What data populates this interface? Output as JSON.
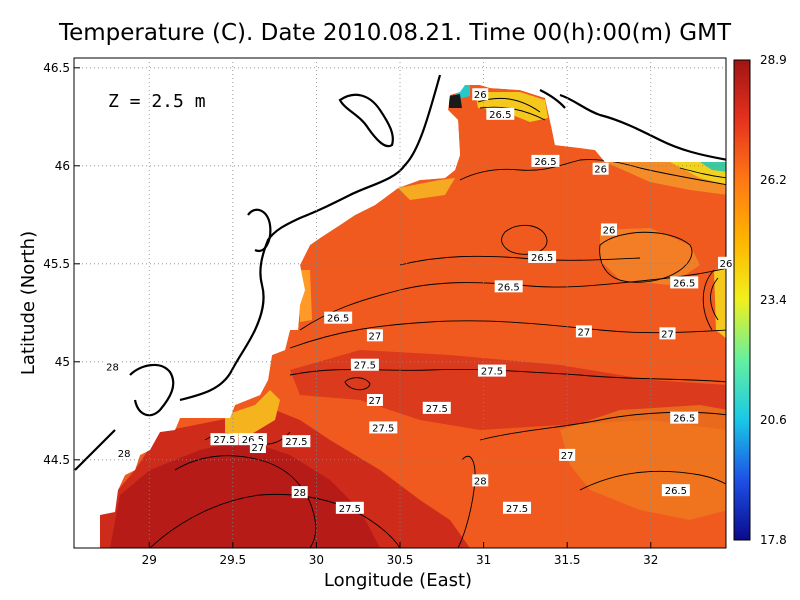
{
  "chart_data": {
    "type": "heatmap",
    "title": "Temperature (C). Date 2010.08.21. Time 00(h):00(m) GMT",
    "xlabel": "Longitude (East)",
    "ylabel": "Latitude (North)",
    "annotation": "Z = 2.5 m",
    "xlim": [
      28.55,
      32.45
    ],
    "ylim": [
      44.05,
      46.55
    ],
    "x_ticks": [
      29,
      29.5,
      30,
      30.5,
      31,
      31.5,
      32
    ],
    "x_tick_labels": [
      "29",
      "29.5",
      "30",
      "30.5",
      "31",
      "31.5",
      "32"
    ],
    "y_ticks": [
      44.5,
      45,
      45.5,
      46,
      46.5
    ],
    "y_tick_labels": [
      "44.5",
      "45",
      "45.5",
      "46",
      "46.5"
    ],
    "grid": true,
    "colorbar": {
      "range": [
        17.8,
        28.9
      ],
      "tick_labels": [
        "28.9",
        "26.2",
        "23.4",
        "20.6",
        "17.8"
      ],
      "colors": [
        "#0a0a8c",
        "#1e50e6",
        "#19c8e6",
        "#64f0a0",
        "#f0f01e",
        "#ffb400",
        "#ff7814",
        "#e6321e",
        "#a01414"
      ]
    },
    "contour_labels": [
      {
        "lon": 28.78,
        "lat": 44.97,
        "text": "28"
      },
      {
        "lon": 28.85,
        "lat": 44.53,
        "text": "28"
      },
      {
        "lon": 29.45,
        "lat": 44.6,
        "text": "27.5"
      },
      {
        "lon": 29.62,
        "lat": 44.6,
        "text": "26.5"
      },
      {
        "lon": 29.65,
        "lat": 44.56,
        "text": "27"
      },
      {
        "lon": 29.88,
        "lat": 44.59,
        "text": "27.5"
      },
      {
        "lon": 29.9,
        "lat": 44.33,
        "text": "28"
      },
      {
        "lon": 30.13,
        "lat": 45.22,
        "text": "26.5"
      },
      {
        "lon": 30.35,
        "lat": 45.13,
        "text": "27"
      },
      {
        "lon": 30.29,
        "lat": 44.98,
        "text": "27.5"
      },
      {
        "lon": 30.35,
        "lat": 44.8,
        "text": "27"
      },
      {
        "lon": 30.4,
        "lat": 44.66,
        "text": "27.5"
      },
      {
        "lon": 30.72,
        "lat": 44.76,
        "text": "27.5"
      },
      {
        "lon": 30.2,
        "lat": 44.25,
        "text": "27.5"
      },
      {
        "lon": 31.05,
        "lat": 44.95,
        "text": "27.5"
      },
      {
        "lon": 30.98,
        "lat": 44.39,
        "text": "28"
      },
      {
        "lon": 31.2,
        "lat": 44.25,
        "text": "27.5"
      },
      {
        "lon": 31.5,
        "lat": 44.52,
        "text": "27"
      },
      {
        "lon": 31.6,
        "lat": 45.15,
        "text": "27"
      },
      {
        "lon": 31.15,
        "lat": 45.38,
        "text": "26.5"
      },
      {
        "lon": 31.35,
        "lat": 45.53,
        "text": "26.5"
      },
      {
        "lon": 31.75,
        "lat": 45.67,
        "text": "26"
      },
      {
        "lon": 32.1,
        "lat": 45.14,
        "text": "27"
      },
      {
        "lon": 32.2,
        "lat": 45.4,
        "text": "26.5"
      },
      {
        "lon": 32.45,
        "lat": 45.5,
        "text": "26"
      },
      {
        "lon": 32.2,
        "lat": 44.71,
        "text": "26.5"
      },
      {
        "lon": 32.15,
        "lat": 44.34,
        "text": "26.5"
      },
      {
        "lon": 31.7,
        "lat": 45.98,
        "text": "26"
      },
      {
        "lon": 31.37,
        "lat": 46.02,
        "text": "26.5"
      },
      {
        "lon": 31.1,
        "lat": 46.26,
        "text": "26.5"
      },
      {
        "lon": 30.98,
        "lat": 46.36,
        "text": "26"
      }
    ]
  }
}
